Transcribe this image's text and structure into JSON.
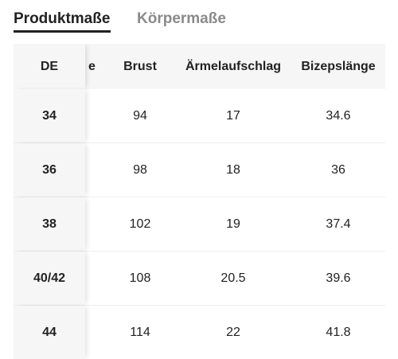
{
  "tabs": [
    {
      "label": "Produktmaße",
      "active": true
    },
    {
      "label": "Körpermaße",
      "active": false
    }
  ],
  "table": {
    "headers": {
      "de": "DE",
      "hidden": "e",
      "brust": "Brust",
      "aermel": "Ärmelaufschlag",
      "bizeps": "Bizepslänge"
    },
    "rows": [
      {
        "de": "34",
        "brust": "94",
        "aermel": "17",
        "bizeps": "34.6"
      },
      {
        "de": "36",
        "brust": "98",
        "aermel": "18",
        "bizeps": "36"
      },
      {
        "de": "38",
        "brust": "102",
        "aermel": "19",
        "bizeps": "37.4"
      },
      {
        "de": "40/42",
        "brust": "108",
        "aermel": "20.5",
        "bizeps": "39.6"
      },
      {
        "de": "44",
        "brust": "114",
        "aermel": "22",
        "bizeps": "41.8"
      }
    ]
  },
  "colors": {
    "active_tab": "#222222",
    "inactive_tab": "#8a8a8a",
    "header_bg": "#f6f6f6",
    "row_divider": "#eeeeee"
  }
}
